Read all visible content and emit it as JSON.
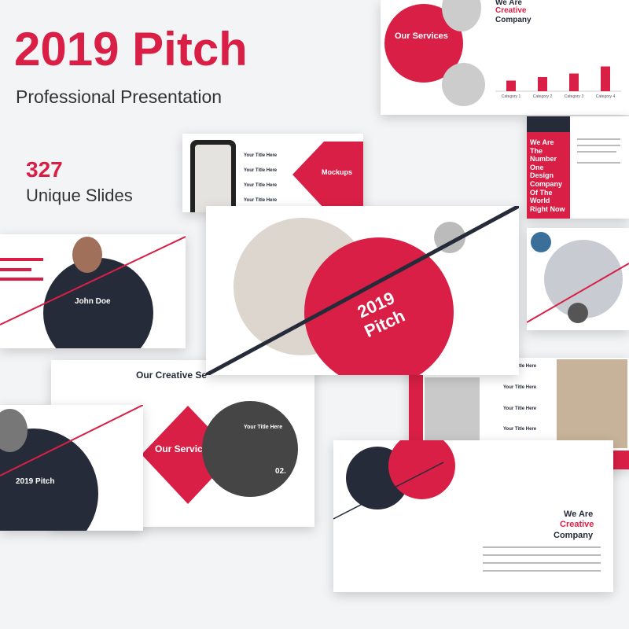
{
  "header": {
    "title": "2019 Pitch",
    "subtitle": "Professional Presentation",
    "count": "327",
    "count_label": "Unique Slides"
  },
  "slides": [
    {
      "heading": "Our Services",
      "lines": [
        "We Are",
        "Creative",
        "Company"
      ],
      "chart": {
        "categories": [
          "Category 1",
          "Category 2",
          "Category 3",
          "Category 4"
        ],
        "values": [
          3,
          4,
          5,
          7
        ],
        "ylim": [
          0,
          8
        ]
      }
    },
    {
      "heading": "Mockups",
      "items": [
        "Your Title Here",
        "Your Title Here",
        "Your Title Here",
        "Your Title Here"
      ]
    },
    {
      "lines": [
        "We Are",
        "The",
        "Number",
        "One",
        "Design",
        "Company",
        "Of The",
        "World",
        "Right Now"
      ]
    },
    {
      "heading": "John Doe"
    },
    {
      "lines": [
        "2019",
        "Pitch"
      ]
    },
    {
      "heading": "Our Creative Se",
      "services": "Our Services",
      "item": "Your Title Here",
      "number": "02."
    },
    {
      "heading": "2019 Pitch"
    },
    {
      "items": [
        "Your Title Here",
        "Your Title Here",
        "Your Title Here",
        "Your Title Here"
      ]
    },
    {
      "lines": [
        "We Are",
        "Creative",
        "Company"
      ]
    }
  ]
}
